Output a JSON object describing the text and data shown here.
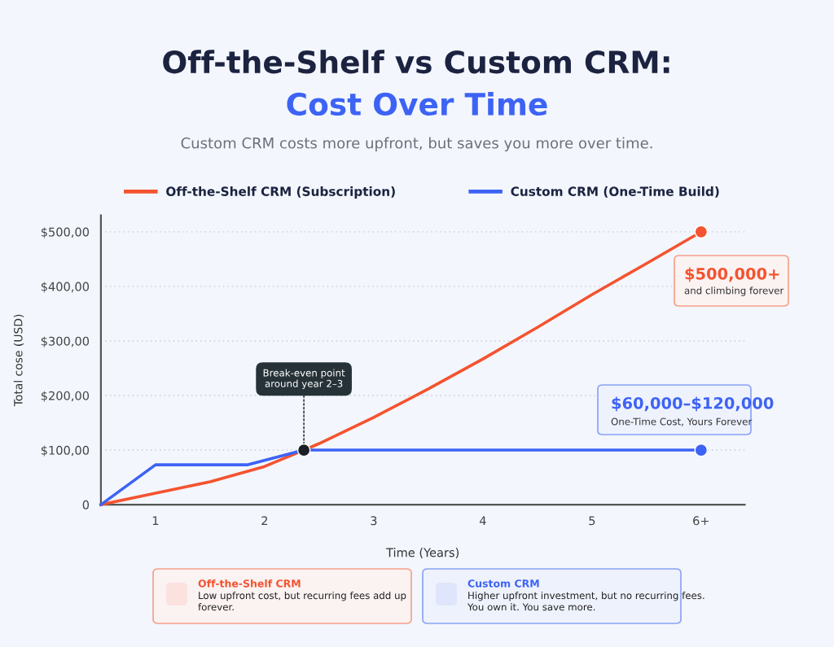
{
  "chart_data": {
    "type": "line",
    "title": "Off-the-Shelf vs Custom CRM:\nCost Over Time",
    "subtitle": "Custom CRM costs more upfront, but saves you more over time.",
    "xlabel": "Time (Years)",
    "ylabel": "Total cose (USD)",
    "xlim": [
      0.5,
      6.4
    ],
    "xticks": [
      1,
      2,
      3,
      4,
      5,
      {
        "value": 6,
        "label": "6+"
      }
    ],
    "ylim": [
      0,
      530
    ],
    "yticks": [
      {
        "value": 0,
        "label": "0"
      },
      {
        "value": 100,
        "label": "$100,00"
      },
      {
        "value": 200,
        "label": "$200,00"
      },
      {
        "value": 300,
        "label": "$300,00"
      },
      {
        "value": 400,
        "label": "$400,00"
      },
      {
        "value": 500,
        "label": "$500,00"
      }
    ],
    "grid": "y",
    "legend": "top",
    "line_style": "solid",
    "series": [
      {
        "name": "Off-the-Shelf CRM (Subscription)",
        "color": "#f4532f",
        "x": [
          0.5,
          1,
          1.5,
          2,
          2.36,
          2.5,
          3,
          3.5,
          4,
          4.5,
          5,
          5.5,
          6
        ],
        "values": [
          0,
          21,
          42,
          70,
          100,
          112,
          160,
          212,
          267,
          325,
          385,
          442,
          500
        ]
      },
      {
        "name": "Custom CRM (One-Time Build)",
        "color": "#3d63f5",
        "x": [
          0.5,
          1,
          1.84,
          2.36,
          6
        ],
        "values": [
          0,
          73,
          73,
          100,
          100
        ]
      },
      {
        "type": "scatter",
        "color": "#f4532f",
        "x": [
          6
        ],
        "values": [
          500
        ]
      },
      {
        "type": "scatter",
        "color": "#3d63f5",
        "x": [
          6
        ],
        "values": [
          100
        ]
      },
      {
        "type": "scatter",
        "color": "#1c1f24",
        "x": [
          2.36
        ],
        "values": [
          100
        ]
      }
    ],
    "annotations": [
      {
        "text": "Break-even point\naround year 2–3",
        "x": 2.36,
        "y": 100
      },
      "$500,000+",
      "and climbing forever",
      "$60,000–$120,000",
      "One-Time Cost, Yours Forever",
      "Off-the-Shelf CRM",
      "Low upfront cost, but recurring fees add up\nforever.",
      "Custom CRM",
      "Higher upfront investment, but no recurring fees.\nYou own it. You save more."
    ]
  }
}
